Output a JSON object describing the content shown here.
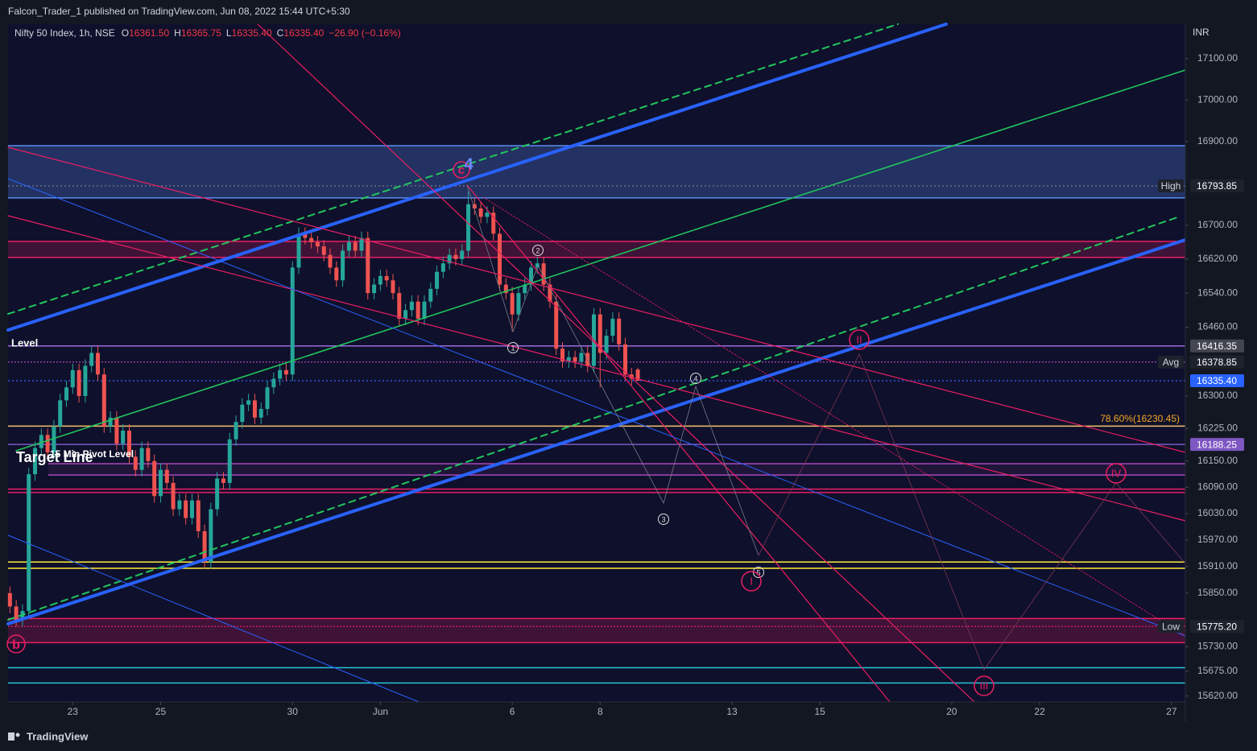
{
  "header": {
    "published": "Falcon_Trader_1 published on TradingView.com, Jun 08, 2022 15:44 UTC+5:30",
    "symbol": "Nifty 50 Index, 1h, NSE",
    "ohlc": [
      {
        "k": "O",
        "v": "16361.50"
      },
      {
        "k": "H",
        "v": "16365.75"
      },
      {
        "k": "L",
        "v": "16335.40"
      },
      {
        "k": "C",
        "v": "16335.40"
      }
    ],
    "change": "−26.90 (−0.16%)",
    "currency": "INR"
  },
  "footer": {
    "brand": "TradingView"
  },
  "chart_data": {
    "type": "candlestick",
    "log": true,
    "up_color": "#26a69a",
    "down_color": "#ef5350",
    "ylim": [
      15566,
      17184
    ],
    "xlim": [
      -10.3,
      177.2
    ],
    "yticks": [
      {
        "value": 17100,
        "label": "17100.00"
      },
      {
        "value": 17000,
        "label": "17000.00"
      },
      {
        "value": 16900,
        "label": "16900.00"
      },
      {
        "value": 16700,
        "label": "16700.00"
      },
      {
        "value": 16620,
        "label": "16620.00"
      },
      {
        "value": 16540,
        "label": "16540.00"
      },
      {
        "value": 16460,
        "label": "16460.00"
      },
      {
        "value": 16300,
        "label": "16300.00"
      },
      {
        "value": 16225,
        "label": "16225.00"
      },
      {
        "value": 16150,
        "label": "16150.00"
      },
      {
        "value": 16090,
        "label": "16090.00"
      },
      {
        "value": 16030,
        "label": "16030.00"
      },
      {
        "value": 15970,
        "label": "15970.00"
      },
      {
        "value": 15910,
        "label": "15910.00"
      },
      {
        "value": 15850,
        "label": "15850.00"
      },
      {
        "value": 15730,
        "label": "15730.00"
      },
      {
        "value": 15675,
        "label": "15675.00"
      },
      {
        "value": 15620,
        "label": "15620.00"
      }
    ],
    "xticks": [
      {
        "value": 0,
        "label": "23"
      },
      {
        "value": 14,
        "label": "25"
      },
      {
        "value": 35,
        "label": "30"
      },
      {
        "value": 49,
        "label": "Jun"
      },
      {
        "value": 70,
        "label": "6"
      },
      {
        "value": 84,
        "label": "8"
      },
      {
        "value": 105,
        "label": "13"
      },
      {
        "value": 119,
        "label": "15"
      },
      {
        "value": 140,
        "label": "20"
      },
      {
        "value": 154,
        "label": "22"
      },
      {
        "value": 175,
        "label": "27"
      }
    ],
    "x": [
      -10,
      -9,
      -8,
      -7,
      -6,
      -5,
      -4,
      -3,
      -2,
      -1,
      0,
      1,
      2,
      3,
      4,
      5,
      6,
      7,
      8,
      9,
      10,
      11,
      12,
      13,
      14,
      15,
      16,
      17,
      18,
      19,
      20,
      21,
      22,
      23,
      24,
      25,
      26,
      27,
      28,
      29,
      30,
      31,
      32,
      33,
      34,
      35,
      36,
      37,
      38,
      39,
      40,
      41,
      42,
      43,
      44,
      45,
      46,
      47,
      48,
      49,
      50,
      51,
      52,
      53,
      54,
      55,
      56,
      57,
      58,
      59,
      60,
      61,
      62,
      63,
      64,
      65,
      66,
      67,
      68,
      69,
      70,
      71,
      72,
      73,
      74,
      75,
      76,
      77,
      78,
      79,
      80,
      81,
      82,
      83,
      84,
      85,
      86,
      87,
      88,
      89,
      90
    ],
    "ohlc": [
      [
        15850,
        15865,
        15805,
        15820
      ],
      [
        15820,
        15835,
        15775,
        15790
      ],
      [
        15790,
        15825,
        15775,
        15810
      ],
      [
        15810,
        16135,
        15795,
        16120
      ],
      [
        16120,
        16195,
        16105,
        16180
      ],
      [
        16180,
        16225,
        16165,
        16210
      ],
      [
        16210,
        16225,
        16155,
        16170
      ],
      [
        16170,
        16245,
        16155,
        16230
      ],
      [
        16230,
        16305,
        16215,
        16290
      ],
      [
        16290,
        16335,
        16275,
        16320
      ],
      [
        16320,
        16375,
        16305,
        16360
      ],
      [
        16360,
        16375,
        16285,
        16300
      ],
      [
        16300,
        16385,
        16285,
        16370
      ],
      [
        16370,
        16415,
        16355,
        16400
      ],
      [
        16400,
        16415,
        16335,
        16350
      ],
      [
        16350,
        16365,
        16215,
        16230
      ],
      [
        16230,
        16265,
        16215,
        16250
      ],
      [
        16250,
        16265,
        16175,
        16190
      ],
      [
        16190,
        16235,
        16175,
        16220
      ],
      [
        16220,
        16235,
        16145,
        16160
      ],
      [
        16160,
        16175,
        16115,
        16130
      ],
      [
        16130,
        16195,
        16115,
        16180
      ],
      [
        16180,
        16195,
        16135,
        16150
      ],
      [
        16150,
        16165,
        16055,
        16070
      ],
      [
        16070,
        16145,
        16055,
        16130
      ],
      [
        16130,
        16145,
        16085,
        16100
      ],
      [
        16100,
        16115,
        16025,
        16040
      ],
      [
        16040,
        16075,
        16025,
        16060
      ],
      [
        16060,
        16075,
        16005,
        16020
      ],
      [
        16020,
        16075,
        16005,
        16060
      ],
      [
        16060,
        16075,
        15975,
        15990
      ],
      [
        15990,
        16005,
        15905,
        15920
      ],
      [
        15920,
        16055,
        15905,
        16040
      ],
      [
        16040,
        16125,
        16025,
        16110
      ],
      [
        16110,
        16125,
        16085,
        16100
      ],
      [
        16100,
        16215,
        16085,
        16200
      ],
      [
        16200,
        16255,
        16185,
        16240
      ],
      [
        16240,
        16295,
        16225,
        16280
      ],
      [
        16280,
        16305,
        16265,
        16290
      ],
      [
        16290,
        16305,
        16235,
        16250
      ],
      [
        16250,
        16285,
        16235,
        16270
      ],
      [
        16270,
        16335,
        16255,
        16320
      ],
      [
        16320,
        16355,
        16305,
        16340
      ],
      [
        16340,
        16375,
        16325,
        16360
      ],
      [
        16360,
        16375,
        16335,
        16350
      ],
      [
        16350,
        16615,
        16335,
        16600
      ],
      [
        16600,
        16695,
        16585,
        16680
      ],
      [
        16680,
        16695,
        16655,
        16670
      ],
      [
        16670,
        16685,
        16645,
        16660
      ],
      [
        16660,
        16675,
        16635,
        16650
      ],
      [
        16650,
        16665,
        16615,
        16630
      ],
      [
        16630,
        16645,
        16585,
        16600
      ],
      [
        16600,
        16615,
        16555,
        16570
      ],
      [
        16570,
        16655,
        16555,
        16640
      ],
      [
        16640,
        16675,
        16625,
        16660
      ],
      [
        16660,
        16675,
        16625,
        16640
      ],
      [
        16640,
        16685,
        16625,
        16670
      ],
      [
        16670,
        16685,
        16525,
        16540
      ],
      [
        16540,
        16575,
        16525,
        16560
      ],
      [
        16560,
        16595,
        16545,
        16580
      ],
      [
        16580,
        16595,
        16555,
        16570
      ],
      [
        16570,
        16585,
        16525,
        16540
      ],
      [
        16540,
        16555,
        16465,
        16480
      ],
      [
        16480,
        16515,
        16465,
        16500
      ],
      [
        16500,
        16535,
        16485,
        16520
      ],
      [
        16520,
        16535,
        16465,
        16480
      ],
      [
        16480,
        16535,
        16465,
        16520
      ],
      [
        16520,
        16565,
        16505,
        16550
      ],
      [
        16550,
        16605,
        16535,
        16590
      ],
      [
        16590,
        16625,
        16575,
        16610
      ],
      [
        16610,
        16645,
        16595,
        16630
      ],
      [
        16630,
        16645,
        16605,
        16620
      ],
      [
        16620,
        16655,
        16605,
        16640
      ],
      [
        16640,
        16780,
        16625,
        16750
      ],
      [
        16750,
        16765,
        16725,
        16740
      ],
      [
        16740,
        16755,
        16705,
        16720
      ],
      [
        16720,
        16745,
        16705,
        16730
      ],
      [
        16730,
        16745,
        16665,
        16680
      ],
      [
        16680,
        16695,
        16545,
        16560
      ],
      [
        16560,
        16575,
        16525,
        16540
      ],
      [
        16540,
        16555,
        16450,
        16490
      ],
      [
        16490,
        16555,
        16475,
        16540
      ],
      [
        16540,
        16575,
        16525,
        16560
      ],
      [
        16560,
        16615,
        16545,
        16600
      ],
      [
        16600,
        16625,
        16585,
        16610
      ],
      [
        16610,
        16625,
        16545,
        16560
      ],
      [
        16560,
        16575,
        16505,
        16520
      ],
      [
        16520,
        16535,
        16395,
        16410
      ],
      [
        16410,
        16425,
        16365,
        16380
      ],
      [
        16380,
        16405,
        16365,
        16390
      ],
      [
        16390,
        16405,
        16365,
        16380
      ],
      [
        16380,
        16415,
        16365,
        16400
      ],
      [
        16400,
        16415,
        16355,
        16370
      ],
      [
        16370,
        16505,
        16355,
        16490
      ],
      [
        16490,
        16505,
        16320,
        16400
      ],
      [
        16400,
        16455,
        16385,
        16440
      ],
      [
        16440,
        16495,
        16425,
        16480
      ],
      [
        16480,
        16495,
        16405,
        16420
      ],
      [
        16420,
        16435,
        16335,
        16350
      ],
      [
        16350,
        16365,
        16325,
        16340
      ],
      [
        16361.5,
        16365.75,
        16335.4,
        16335.4
      ]
    ],
    "zones": [
      {
        "top": 16890,
        "bottom": 16765,
        "color": "#5b8def",
        "fill": "rgba(91,141,239,0.28)",
        "xfrom": -10.3
      },
      {
        "top": 16662,
        "bottom": 16624,
        "color": "#e91e63",
        "fill": "rgba(233,30,99,0.22)",
        "xfrom": -10.3
      },
      {
        "top": 16144,
        "bottom": 16118,
        "color": "#ab47bc",
        "fill": "rgba(171,71,188,0.10)",
        "xfrom": -3.9
      },
      {
        "top": 15793,
        "bottom": 15739,
        "color": "#e91e63",
        "fill": "rgba(233,30,99,0.22)",
        "xfrom": -10.3
      }
    ],
    "lines": [
      {
        "price": 16793.85,
        "color": "#787b86",
        "dash": "2 3"
      },
      {
        "price": 16416.35,
        "color": "#9c6ade",
        "dash": "none"
      },
      {
        "price": 16378.85,
        "color": "#ab47bc",
        "dash": "2 2"
      },
      {
        "price": 16335.4,
        "color": "#2962ff",
        "dash": "2 3"
      },
      {
        "price": 16230.45,
        "color": "#f5c26b",
        "dash": "none"
      },
      {
        "price": 16188.25,
        "color": "#7e57c2",
        "dash": "none"
      },
      {
        "price": 16086,
        "color": "#e91e63",
        "dash": "none"
      },
      {
        "price": 16078,
        "color": "#e91e63",
        "dash": "none"
      },
      {
        "price": 15920,
        "color": "#ffeb3b",
        "dash": "none"
      },
      {
        "price": 15906,
        "color": "#ffeb3b",
        "dash": "none"
      },
      {
        "price": 15775.2,
        "color": "#e91e63",
        "dash": "2 2"
      },
      {
        "price": 15683,
        "color": "#26c6da",
        "dash": "none"
      },
      {
        "price": 15649,
        "color": "#26c6da",
        "dash": "none"
      }
    ],
    "tags": [
      {
        "name": "High",
        "price": 16793.85,
        "text": "16793.85",
        "bg": "#1e222d"
      },
      {
        "price": 16416.35,
        "text": "16416.35",
        "bg": "#434651"
      },
      {
        "name": "Avg",
        "price": 16378.85,
        "text": "16378.85",
        "bg": "#1e222d"
      },
      {
        "price": 16335.4,
        "text": "16335.40",
        "bg": "#2962ff"
      },
      {
        "price": 16188.25,
        "text": "16188.25",
        "bg": "#7e57c2"
      },
      {
        "name": "Low",
        "price": 15775.2,
        "text": "15775.20",
        "bg": "#1e222d"
      }
    ]
  },
  "annotations": {
    "wave_4": "4",
    "wave_c": "c",
    "wave_b": "b",
    "sub": [
      "1",
      "2",
      "3",
      "4",
      "5"
    ],
    "roman": [
      "I",
      "II",
      "III",
      "IV"
    ],
    "level": "Level",
    "target": "Target Line",
    "pivot": "15 Min Pivot Level",
    "fib": "78.60%(16230.45)"
  }
}
